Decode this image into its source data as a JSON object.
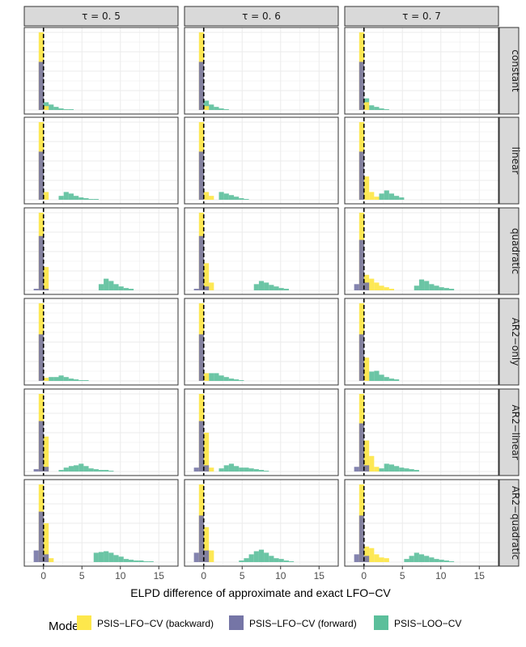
{
  "chart_data": {
    "type": "histogram",
    "xlabel": "ELPD difference of approximate and exact LFO−CV",
    "ylabel": "",
    "xlim": [
      -2.5,
      17.5
    ],
    "x_ticks": [
      0,
      5,
      10,
      15
    ],
    "reference_line": {
      "x": 0,
      "style": "dashed"
    },
    "grid": true,
    "bin_width": 0.65,
    "columns": [
      "τ = 0. 5",
      "τ = 0. 6",
      "τ = 0. 7"
    ],
    "rows": [
      "constant",
      "linear",
      "quadratic",
      "AR2−only",
      "AR2−linear",
      "AR2−quadratic"
    ],
    "legend": {
      "title": "Mode",
      "position": "bottom",
      "entries": [
        {
          "name": "PSIS−LFO−CV (backward)",
          "color": "#FDE74C"
        },
        {
          "name": "PSIS−LFO−CV (forward)",
          "color": "#7575A6"
        },
        {
          "name": "PSIS−LOO−CV",
          "color": "#5BBF9B"
        }
      ]
    },
    "panels": [
      [
        {
          "backward": [
            [
              -0.3,
              1.0
            ],
            [
              0.35,
              0.05
            ]
          ],
          "forward": [
            [
              -0.3,
              0.62
            ]
          ],
          "loo": [
            [
              0.35,
              0.1
            ],
            [
              1.0,
              0.07
            ],
            [
              1.65,
              0.04
            ],
            [
              2.3,
              0.02
            ],
            [
              2.95,
              0.01
            ],
            [
              3.6,
              0.01
            ]
          ]
        },
        {
          "backward": [
            [
              -0.3,
              1.0
            ],
            [
              0.35,
              0.1
            ]
          ],
          "forward": [
            [
              -0.3,
              0.62
            ]
          ],
          "loo": [
            [
              2.3,
              0.05
            ],
            [
              2.95,
              0.1
            ],
            [
              3.6,
              0.08
            ],
            [
              4.25,
              0.05
            ],
            [
              4.9,
              0.03
            ],
            [
              5.55,
              0.02
            ],
            [
              6.2,
              0.01
            ],
            [
              6.85,
              0.01
            ]
          ]
        },
        {
          "backward": [
            [
              -0.3,
              1.0
            ],
            [
              0.35,
              0.3
            ]
          ],
          "forward": [
            [
              -0.3,
              0.7
            ],
            [
              -0.95,
              0.02
            ],
            [
              0.35,
              0.02
            ]
          ],
          "loo": [
            [
              7.5,
              0.08
            ],
            [
              8.15,
              0.15
            ],
            [
              8.8,
              0.12
            ],
            [
              9.45,
              0.08
            ],
            [
              10.1,
              0.05
            ],
            [
              10.75,
              0.03
            ],
            [
              11.4,
              0.02
            ]
          ]
        },
        {
          "backward": [
            [
              -0.3,
              1.0
            ],
            [
              0.35,
              0.04
            ]
          ],
          "forward": [
            [
              -0.3,
              0.6
            ]
          ],
          "loo": [
            [
              1.0,
              0.05
            ],
            [
              1.65,
              0.05
            ],
            [
              2.3,
              0.07
            ],
            [
              2.95,
              0.05
            ],
            [
              3.6,
              0.03
            ],
            [
              4.25,
              0.02
            ],
            [
              4.9,
              0.01
            ],
            [
              5.55,
              0.01
            ]
          ]
        },
        {
          "backward": [
            [
              -0.3,
              1.0
            ],
            [
              0.35,
              0.45
            ]
          ],
          "forward": [
            [
              -0.3,
              0.65
            ],
            [
              -0.95,
              0.03
            ],
            [
              0.35,
              0.06
            ]
          ],
          "loo": [
            [
              2.3,
              0.02
            ],
            [
              2.95,
              0.05
            ],
            [
              3.6,
              0.07
            ],
            [
              4.25,
              0.08
            ],
            [
              4.9,
              0.1
            ],
            [
              5.55,
              0.07
            ],
            [
              6.2,
              0.04
            ],
            [
              6.85,
              0.03
            ],
            [
              7.5,
              0.02
            ],
            [
              8.15,
              0.02
            ],
            [
              8.8,
              0.01
            ]
          ]
        },
        {
          "backward": [
            [
              -0.3,
              1.0
            ],
            [
              0.35,
              0.5
            ],
            [
              1.0,
              0.05
            ]
          ],
          "forward": [
            [
              -0.95,
              0.15
            ],
            [
              -0.3,
              0.65
            ],
            [
              0.35,
              0.1
            ]
          ],
          "loo": [
            [
              6.85,
              0.12
            ],
            [
              7.5,
              0.13
            ],
            [
              8.15,
              0.14
            ],
            [
              8.8,
              0.12
            ],
            [
              9.45,
              0.09
            ],
            [
              10.1,
              0.07
            ],
            [
              10.75,
              0.04
            ],
            [
              11.4,
              0.03
            ],
            [
              12.05,
              0.02
            ],
            [
              12.7,
              0.02
            ],
            [
              13.35,
              0.01
            ],
            [
              14.0,
              0.01
            ]
          ]
        }
      ],
      [
        {
          "backward": [
            [
              -0.3,
              1.0
            ],
            [
              0.35,
              0.05
            ]
          ],
          "forward": [
            [
              -0.3,
              0.62
            ]
          ],
          "loo": [
            [
              0.35,
              0.12
            ],
            [
              1.0,
              0.07
            ],
            [
              1.65,
              0.04
            ],
            [
              2.3,
              0.02
            ],
            [
              2.95,
              0.01
            ]
          ]
        },
        {
          "backward": [
            [
              -0.3,
              1.0
            ],
            [
              0.35,
              0.1
            ],
            [
              1.0,
              0.05
            ]
          ],
          "forward": [
            [
              -0.3,
              0.62
            ]
          ],
          "loo": [
            [
              2.3,
              0.1
            ],
            [
              2.95,
              0.08
            ],
            [
              3.6,
              0.06
            ],
            [
              4.25,
              0.04
            ],
            [
              4.9,
              0.02
            ],
            [
              5.55,
              0.01
            ]
          ]
        },
        {
          "backward": [
            [
              -0.3,
              1.0
            ],
            [
              0.35,
              0.35
            ],
            [
              1.0,
              0.1
            ]
          ],
          "forward": [
            [
              -0.95,
              0.02
            ],
            [
              -0.3,
              0.7
            ],
            [
              0.35,
              0.05
            ]
          ],
          "loo": [
            [
              6.85,
              0.08
            ],
            [
              7.5,
              0.12
            ],
            [
              8.15,
              0.1
            ],
            [
              8.8,
              0.07
            ],
            [
              9.45,
              0.05
            ],
            [
              10.1,
              0.03
            ],
            [
              10.75,
              0.02
            ]
          ]
        },
        {
          "backward": [
            [
              -0.3,
              1.0
            ],
            [
              0.35,
              0.1
            ]
          ],
          "forward": [
            [
              -0.3,
              0.6
            ]
          ],
          "loo": [
            [
              1.0,
              0.1
            ],
            [
              1.65,
              0.1
            ],
            [
              2.3,
              0.07
            ],
            [
              2.95,
              0.05
            ],
            [
              3.6,
              0.03
            ],
            [
              4.25,
              0.02
            ],
            [
              4.9,
              0.01
            ]
          ]
        },
        {
          "backward": [
            [
              -0.3,
              1.0
            ],
            [
              0.35,
              0.5
            ],
            [
              1.0,
              0.05
            ]
          ],
          "forward": [
            [
              -0.95,
              0.05
            ],
            [
              -0.3,
              0.65
            ],
            [
              0.35,
              0.08
            ]
          ],
          "loo": [
            [
              2.3,
              0.04
            ],
            [
              2.95,
              0.08
            ],
            [
              3.6,
              0.1
            ],
            [
              4.25,
              0.07
            ],
            [
              4.9,
              0.05
            ],
            [
              5.55,
              0.05
            ],
            [
              6.2,
              0.04
            ],
            [
              6.85,
              0.03
            ],
            [
              7.5,
              0.02
            ],
            [
              8.15,
              0.01
            ]
          ]
        },
        {
          "backward": [
            [
              -0.3,
              1.0
            ],
            [
              0.35,
              0.45
            ],
            [
              1.0,
              0.15
            ]
          ],
          "forward": [
            [
              -0.95,
              0.12
            ],
            [
              -0.3,
              0.6
            ],
            [
              0.35,
              0.15
            ]
          ],
          "loo": [
            [
              4.9,
              0.02
            ],
            [
              5.55,
              0.05
            ],
            [
              6.2,
              0.1
            ],
            [
              6.85,
              0.14
            ],
            [
              7.5,
              0.16
            ],
            [
              8.15,
              0.12
            ],
            [
              8.8,
              0.08
            ],
            [
              9.45,
              0.05
            ],
            [
              10.1,
              0.04
            ],
            [
              10.75,
              0.02
            ],
            [
              11.4,
              0.01
            ]
          ]
        }
      ],
      [
        {
          "backward": [
            [
              -0.3,
              1.0
            ],
            [
              0.35,
              0.1
            ]
          ],
          "forward": [
            [
              -0.3,
              0.62
            ]
          ],
          "loo": [
            [
              0.35,
              0.15
            ],
            [
              1.0,
              0.06
            ],
            [
              1.65,
              0.04
            ],
            [
              2.3,
              0.02
            ],
            [
              2.95,
              0.01
            ]
          ]
        },
        {
          "backward": [
            [
              -0.3,
              1.0
            ],
            [
              0.35,
              0.3
            ],
            [
              1.0,
              0.1
            ],
            [
              1.65,
              0.04
            ]
          ],
          "forward": [
            [
              -0.3,
              0.62
            ]
          ],
          "loo": [
            [
              2.3,
              0.08
            ],
            [
              2.95,
              0.12
            ],
            [
              3.6,
              0.08
            ],
            [
              4.25,
              0.05
            ],
            [
              4.9,
              0.03
            ]
          ]
        },
        {
          "backward": [
            [
              -0.3,
              1.0
            ],
            [
              0.35,
              0.2
            ],
            [
              1.0,
              0.15
            ],
            [
              1.65,
              0.1
            ],
            [
              2.3,
              0.06
            ],
            [
              2.95,
              0.04
            ],
            [
              3.6,
              0.02
            ]
          ],
          "forward": [
            [
              -0.95,
              0.08
            ],
            [
              -0.3,
              0.65
            ],
            [
              0.35,
              0.1
            ]
          ],
          "loo": [
            [
              6.85,
              0.06
            ],
            [
              7.5,
              0.14
            ],
            [
              8.15,
              0.12
            ],
            [
              8.8,
              0.08
            ],
            [
              9.45,
              0.06
            ],
            [
              10.1,
              0.04
            ],
            [
              10.75,
              0.03
            ],
            [
              11.4,
              0.02
            ]
          ]
        },
        {
          "backward": [
            [
              -0.3,
              1.0
            ],
            [
              0.35,
              0.3
            ]
          ],
          "forward": [
            [
              -0.3,
              0.6
            ]
          ],
          "loo": [
            [
              1.0,
              0.12
            ],
            [
              1.65,
              0.13
            ],
            [
              2.3,
              0.08
            ],
            [
              2.95,
              0.05
            ],
            [
              3.6,
              0.03
            ],
            [
              4.25,
              0.02
            ]
          ]
        },
        {
          "backward": [
            [
              -0.3,
              1.0
            ],
            [
              0.35,
              0.4
            ],
            [
              1.0,
              0.2
            ],
            [
              1.65,
              0.06
            ]
          ],
          "forward": [
            [
              -0.95,
              0.06
            ],
            [
              -0.3,
              0.62
            ],
            [
              0.35,
              0.08
            ]
          ],
          "loo": [
            [
              2.3,
              0.04
            ],
            [
              2.95,
              0.1
            ],
            [
              3.6,
              0.09
            ],
            [
              4.25,
              0.07
            ],
            [
              4.9,
              0.05
            ],
            [
              5.55,
              0.04
            ],
            [
              6.2,
              0.03
            ],
            [
              6.85,
              0.02
            ]
          ]
        },
        {
          "backward": [
            [
              -0.3,
              1.0
            ],
            [
              0.35,
              0.2
            ],
            [
              1.0,
              0.18
            ],
            [
              1.65,
              0.1
            ],
            [
              2.3,
              0.06
            ],
            [
              2.95,
              0.05
            ]
          ],
          "forward": [
            [
              -0.95,
              0.1
            ],
            [
              -0.3,
              0.6
            ],
            [
              0.35,
              0.08
            ]
          ],
          "loo": [
            [
              5.55,
              0.04
            ],
            [
              6.2,
              0.08
            ],
            [
              6.85,
              0.12
            ],
            [
              7.5,
              0.1
            ],
            [
              8.15,
              0.08
            ],
            [
              8.8,
              0.06
            ],
            [
              9.45,
              0.04
            ],
            [
              10.1,
              0.03
            ],
            [
              10.75,
              0.02
            ],
            [
              11.4,
              0.01
            ]
          ]
        }
      ]
    ]
  }
}
